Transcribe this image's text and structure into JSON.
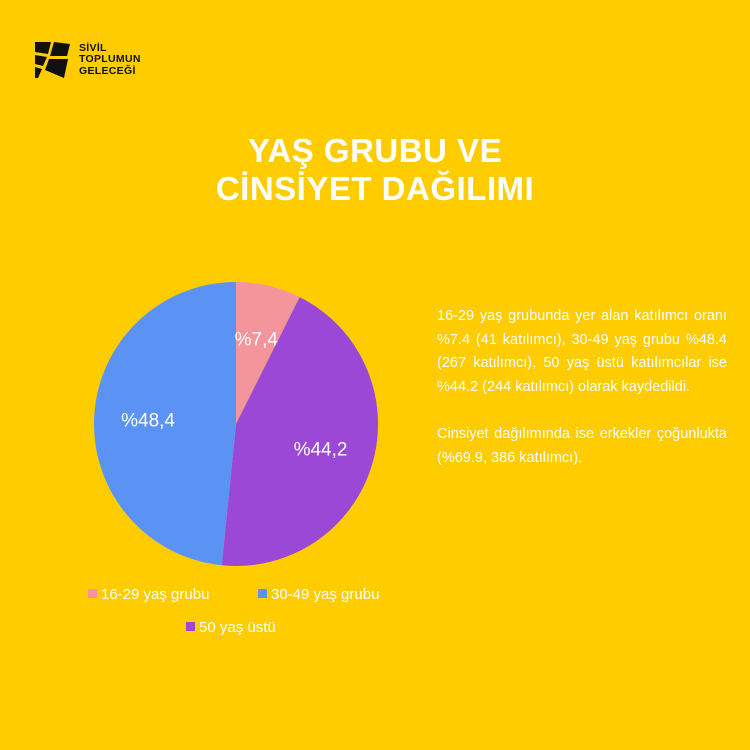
{
  "logo": {
    "lines": [
      "SİVİL",
      "TOPLUMUN",
      "GELECEĞİ"
    ],
    "icon": "logo-mark-icon"
  },
  "title": {
    "line1": "YAŞ GRUBU VE",
    "line2": "CİNSİYET DAĞILIMI"
  },
  "colors": {
    "background": "#FFCC00",
    "text": "#FFFFFF"
  },
  "chart_data": {
    "type": "pie",
    "title": "",
    "slices": [
      {
        "name": "16-29 yaş grubu",
        "value": 7.4,
        "label": "%7,4",
        "color": "#F4949B"
      },
      {
        "name": "50 yaş üstü",
        "value": 44.2,
        "label": "%44,2",
        "color": "#9B48D6"
      },
      {
        "name": "30-49 yaş grubu",
        "value": 48.4,
        "label": "%48,4",
        "color": "#5B93F5"
      }
    ],
    "start_angle_deg": 0,
    "direction": "clockwise",
    "legend": {
      "placement": "bottom",
      "entries": [
        {
          "label": "16-29 yaş grubu",
          "color": "#F4949B"
        },
        {
          "label": "30-49 yaş grubu",
          "color": "#5B93F5"
        },
        {
          "label": "50 yaş üstü",
          "color": "#9B48D6"
        }
      ]
    }
  },
  "description": {
    "paragraph1": "16-29 yaş grubunda yer alan katılımcı oranı %7.4 (41 katılımcı), 30-49 yaş grubu %48.4 (267 katılımcı), 50 yaş üstü katılımcılar ise %44.2 (244 katılımcı) olarak kaydedildi.",
    "paragraph2": "Cinsiyet dağılımında ise erkekler çoğunlukta (%69.9, 386 katılımcı)."
  }
}
